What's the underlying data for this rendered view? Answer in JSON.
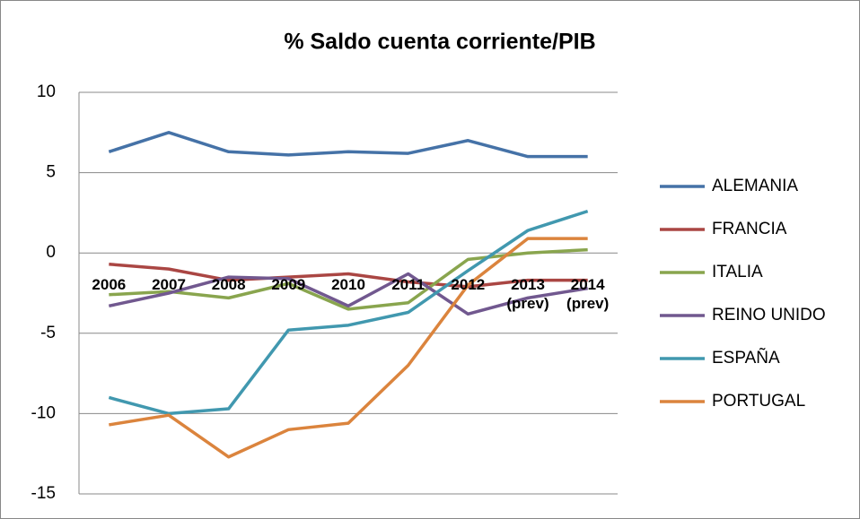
{
  "chart_data": {
    "type": "line",
    "title": "% Saldo cuenta corriente/PIB",
    "categories": [
      "2006",
      "2007",
      "2008",
      "2009",
      "2010",
      "2011",
      "2012",
      "2013\n(prev)",
      "2014\n(prev)"
    ],
    "series": [
      {
        "name": "ALEMANIA",
        "color": "#4572a7",
        "values": [
          6.3,
          7.5,
          6.3,
          6.1,
          6.3,
          6.2,
          7.0,
          6.0,
          6.0
        ]
      },
      {
        "name": "FRANCIA",
        "color": "#aa4643",
        "values": [
          -0.7,
          -1.0,
          -1.7,
          -1.5,
          -1.3,
          -1.8,
          -2.1,
          -1.7,
          -1.7
        ]
      },
      {
        "name": "ITALIA",
        "color": "#89a54e",
        "values": [
          -2.6,
          -2.4,
          -2.8,
          -1.9,
          -3.5,
          -3.1,
          -0.4,
          0.0,
          0.2
        ]
      },
      {
        "name": "REINO UNIDO",
        "color": "#71588f",
        "values": [
          -3.3,
          -2.5,
          -1.5,
          -1.6,
          -3.3,
          -1.3,
          -3.8,
          -2.8,
          -2.2
        ]
      },
      {
        "name": "ESPAÑA",
        "color": "#4198af",
        "values": [
          -9.0,
          -10.0,
          -9.7,
          -4.8,
          -4.5,
          -3.7,
          -1.1,
          1.4,
          2.6
        ]
      },
      {
        "name": "PORTUGAL",
        "color": "#db843d",
        "values": [
          -10.7,
          -10.1,
          -12.7,
          -11.0,
          -10.6,
          -7.0,
          -2.0,
          0.9,
          0.9
        ]
      }
    ],
    "ylim": [
      -15,
      10
    ],
    "yticks": [
      -15,
      -10,
      -5,
      0,
      5,
      10
    ],
    "grid": true,
    "legend": "right"
  }
}
